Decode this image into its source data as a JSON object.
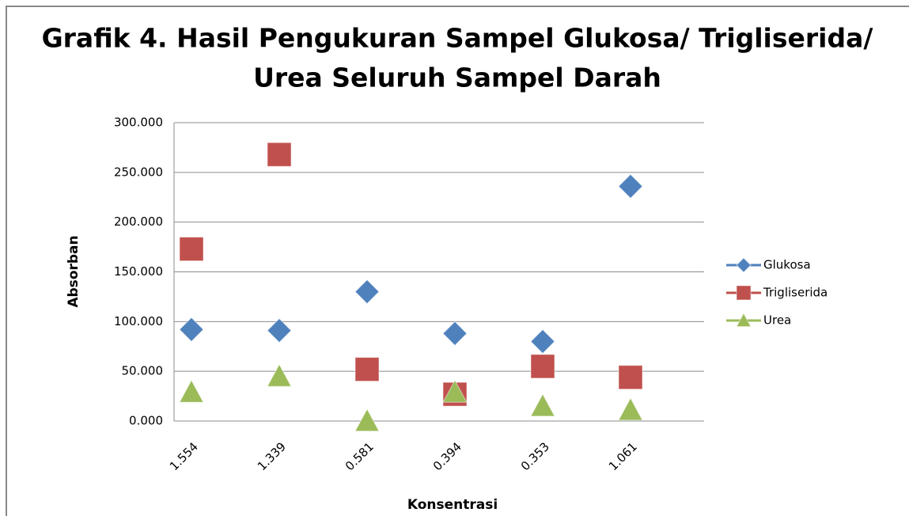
{
  "chart_data": {
    "type": "line",
    "lines": false,
    "title": [
      "Grafik 4. Hasil Pengukuran Sampel Glukosa/ Trigliserida/",
      "Urea Seluruh Sampel Darah"
    ],
    "xlabel": "Konsentrasi",
    "ylabel": "Absorban",
    "categories": [
      "1.554",
      "1.339",
      "0.581",
      "0.394",
      "0.353",
      "1.061"
    ],
    "series": [
      {
        "name": "Glukosa",
        "color": "#4f81bd",
        "marker": "diamond",
        "values": [
          92,
          91,
          130,
          88,
          80,
          236
        ]
      },
      {
        "name": "Trigliserida",
        "color": "#c0504d",
        "marker": "square",
        "values": [
          173,
          268,
          52,
          27,
          55,
          44
        ]
      },
      {
        "name": "Urea",
        "color": "#9bbb59",
        "marker": "triangle",
        "values": [
          29,
          45,
          0,
          29,
          15,
          11
        ]
      }
    ],
    "ylim": [
      0,
      300
    ],
    "yticks": [
      {
        "value": 0,
        "label": "0.000"
      },
      {
        "value": 50,
        "label": "50.000"
      },
      {
        "value": 100,
        "label": "100.000"
      },
      {
        "value": 150,
        "label": "150.000"
      },
      {
        "value": 200,
        "label": "200.000"
      },
      {
        "value": 250,
        "label": "250.000"
      },
      {
        "value": 300,
        "label": "300.000"
      }
    ],
    "grid": true,
    "legend": "right"
  }
}
